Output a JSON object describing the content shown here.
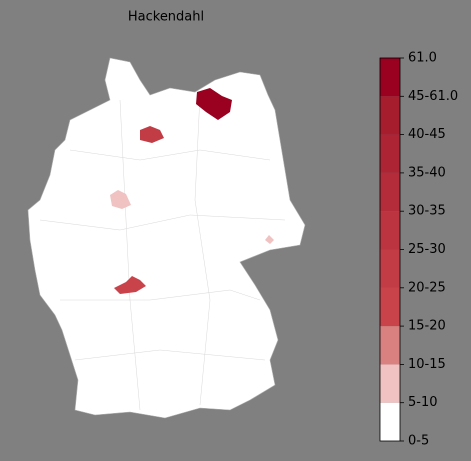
{
  "title": "Hackendahl",
  "legend": {
    "ticks": [
      "0-5",
      "5-10",
      "10-15",
      "15-20",
      "20-25",
      "25-30",
      "30-35",
      "35-40",
      "40-45",
      "45-61.0",
      "61.0"
    ],
    "colors": [
      "#ffffff",
      "#f0c2c2",
      "#d98080",
      "#c9434b",
      "#c23c45",
      "#bb343f",
      "#b42c39",
      "#ad2534",
      "#a61d2e",
      "#9a0020"
    ]
  }
}
